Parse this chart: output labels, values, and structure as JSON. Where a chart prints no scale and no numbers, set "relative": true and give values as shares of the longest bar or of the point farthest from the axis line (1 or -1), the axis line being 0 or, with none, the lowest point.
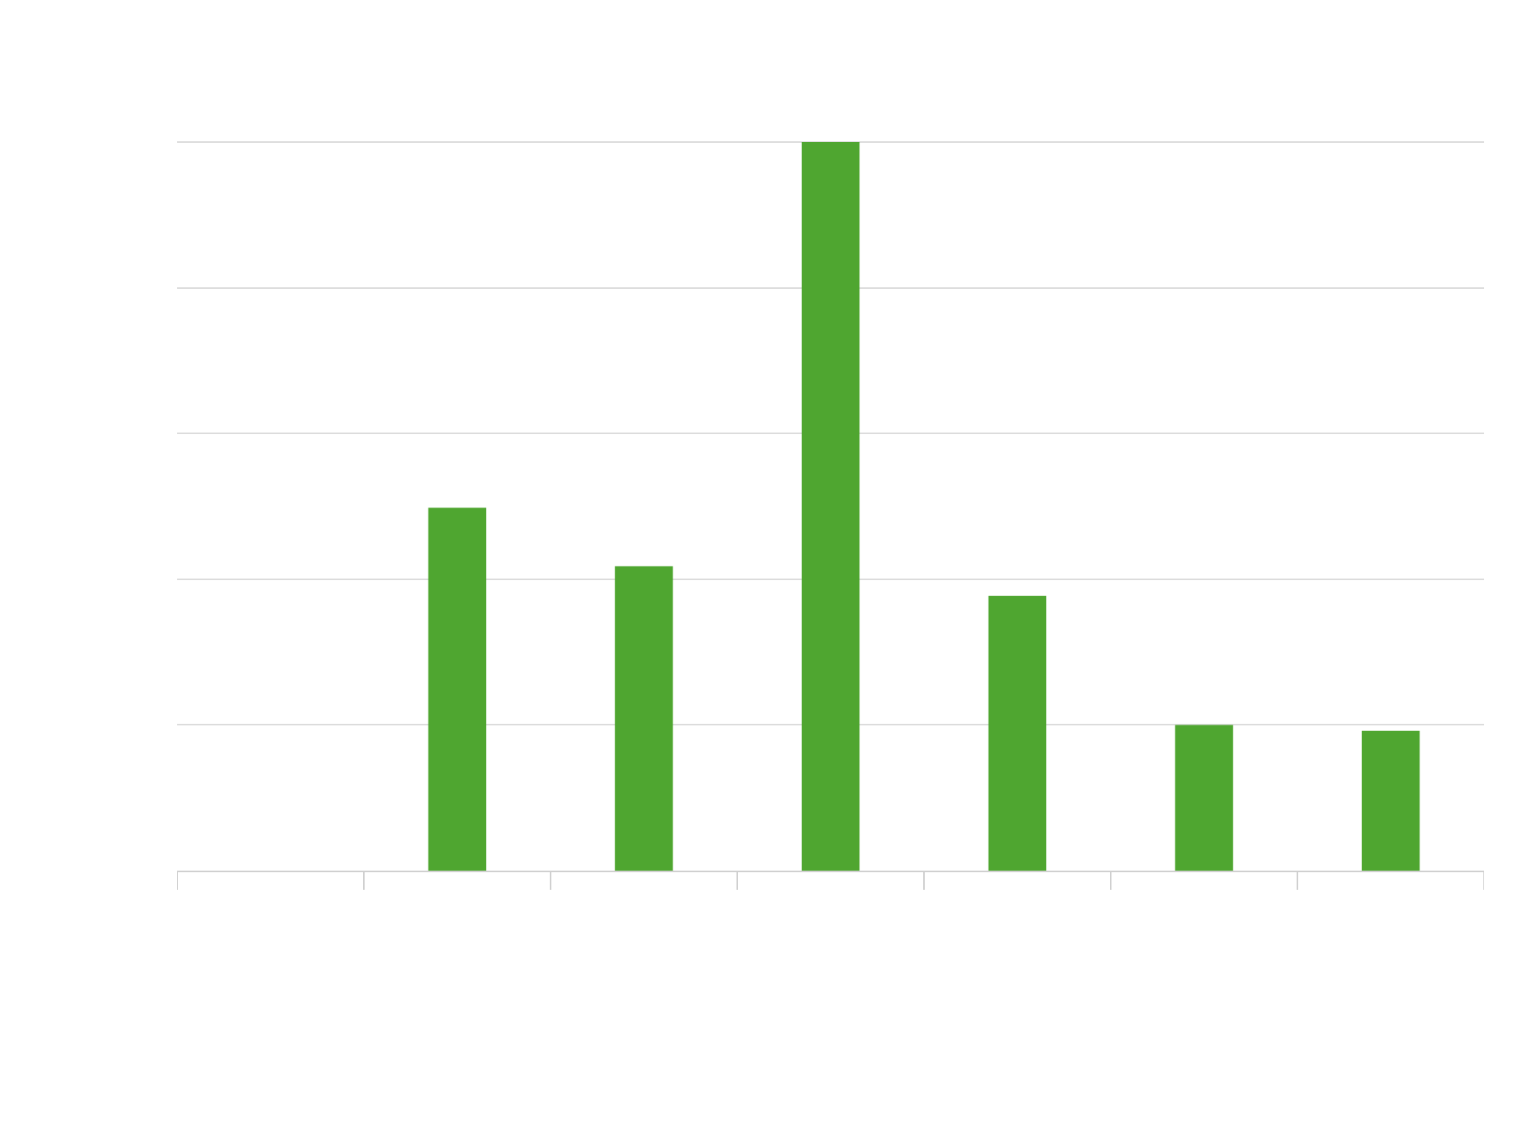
{
  "chart_data": {
    "type": "bar",
    "relative": true,
    "categories": [
      null,
      null,
      null,
      null,
      null,
      null
    ],
    "series": [
      {
        "color": "#4fa630",
        "values": [
          0.498,
          0.418,
          1.0,
          0.377,
          0.2,
          0.192
        ]
      }
    ],
    "grid": "y"
  }
}
